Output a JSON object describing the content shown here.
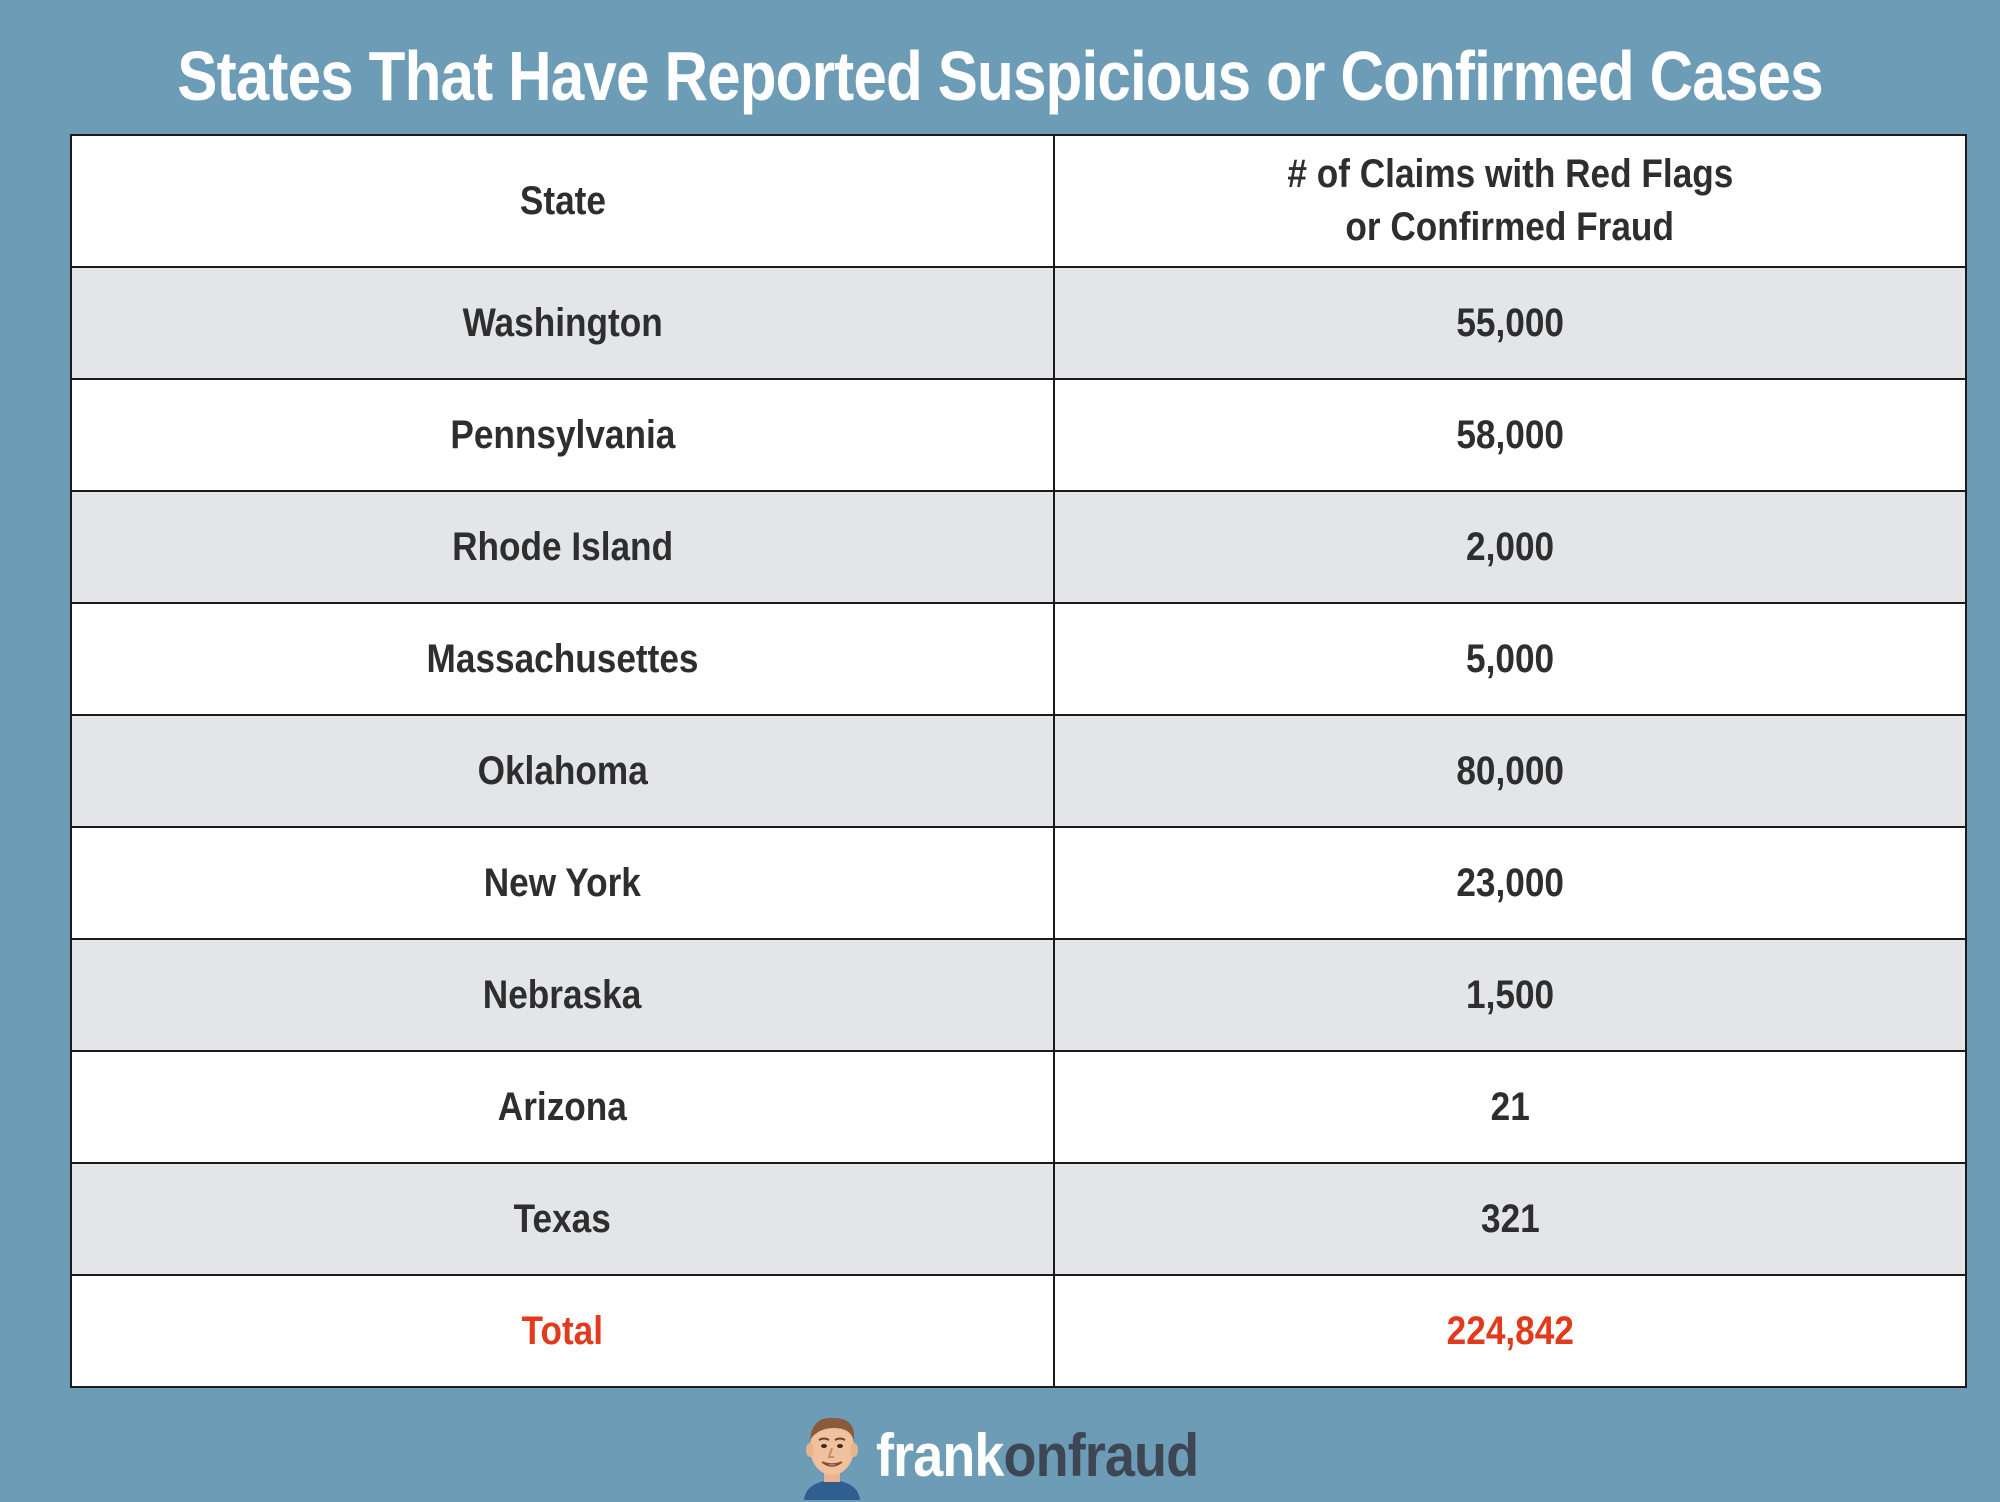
{
  "title": "States That Have Reported Suspicious or Confirmed Cases",
  "chart_data": {
    "type": "table",
    "title": "States That Have Reported Suspicious or Confirmed Cases",
    "columns": [
      "State",
      "# of Claims with Red Flags or Confirmed Fraud"
    ],
    "header": {
      "state": "State",
      "claims_line1": "# of Claims with Red Flags",
      "claims_line2": "or Confirmed Fraud"
    },
    "rows": [
      {
        "state": "Washington",
        "claims": "55,000"
      },
      {
        "state": "Pennsylvania",
        "claims": "58,000"
      },
      {
        "state": "Rhode Island",
        "claims": "2,000"
      },
      {
        "state": "Massachusettes",
        "claims": "5,000"
      },
      {
        "state": "Oklahoma",
        "claims": "80,000"
      },
      {
        "state": "New York",
        "claims": "23,000"
      },
      {
        "state": "Nebraska",
        "claims": "1,500"
      },
      {
        "state": "Arizona",
        "claims": "21"
      },
      {
        "state": "Texas",
        "claims": "321"
      }
    ],
    "total": {
      "label": "Total",
      "value": "224,842"
    }
  },
  "brand": {
    "part1": "frank",
    "part2": "onfraud",
    "logo_icon": "mascot-face-icon"
  },
  "colors": {
    "background": "#6d9db6",
    "row_alt": "#e4e5e9",
    "row_white": "#ffffff",
    "text": "#2e2e2e",
    "total": "#e23a1c",
    "brand_dark": "#3d4652"
  }
}
